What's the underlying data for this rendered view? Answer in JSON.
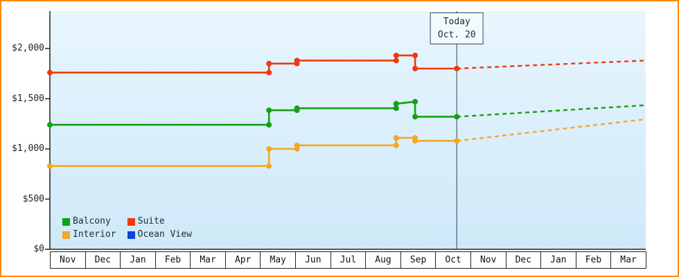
{
  "chart_data": {
    "type": "line",
    "x_axis": {
      "labels": [
        "Nov",
        "Dec",
        "Jan",
        "Feb",
        "Mar",
        "Apr",
        "May",
        "Jun",
        "Jul",
        "Aug",
        "Sep",
        "Oct",
        "Nov",
        "Dec",
        "Jan",
        "Feb",
        "Mar"
      ]
    },
    "y_axis": {
      "max": 2000,
      "ticks": [
        {
          "label": "$0",
          "value": 0
        },
        {
          "label": "$500",
          "value": 500
        },
        {
          "label": "$1,000",
          "value": 1000
        },
        {
          "label": "$1,500",
          "value": 1500
        },
        {
          "label": "$2,000",
          "value": 2000
        }
      ]
    },
    "today": {
      "line1": "Today",
      "line2": "Oct. 20",
      "month_index": 11.61
    },
    "series": [
      {
        "name": "Suite",
        "color": "#ee3911",
        "history": [
          [
            0,
            1760
          ],
          [
            6.25,
            1760
          ],
          [
            6.25,
            1850
          ],
          [
            7.05,
            1850
          ],
          [
            7.05,
            1880
          ],
          [
            9.88,
            1880
          ],
          [
            9.88,
            1930
          ],
          [
            10.42,
            1930
          ],
          [
            10.42,
            1800
          ],
          [
            11.61,
            1800
          ]
        ],
        "forecast": [
          [
            11.61,
            1800
          ],
          [
            17,
            1880
          ]
        ]
      },
      {
        "name": "Balcony",
        "color": "#13a113",
        "history": [
          [
            0,
            1240
          ],
          [
            6.25,
            1240
          ],
          [
            6.25,
            1385
          ],
          [
            7.05,
            1385
          ],
          [
            7.05,
            1405
          ],
          [
            9.88,
            1405
          ],
          [
            9.88,
            1450
          ],
          [
            10.42,
            1470
          ],
          [
            10.42,
            1320
          ],
          [
            11.61,
            1320
          ]
        ],
        "forecast": [
          [
            11.61,
            1320
          ],
          [
            17,
            1435
          ]
        ]
      },
      {
        "name": "Interior",
        "color": "#f5a623",
        "history": [
          [
            0,
            830
          ],
          [
            6.25,
            830
          ],
          [
            6.25,
            1000
          ],
          [
            7.05,
            1000
          ],
          [
            7.05,
            1035
          ],
          [
            9.88,
            1035
          ],
          [
            9.88,
            1110
          ],
          [
            10.42,
            1110
          ],
          [
            10.42,
            1080
          ],
          [
            11.61,
            1080
          ]
        ],
        "forecast": [
          [
            11.61,
            1080
          ],
          [
            17,
            1295
          ]
        ]
      },
      {
        "name": "Ocean View",
        "color": "#1144dd",
        "history": [],
        "forecast": []
      }
    ],
    "legend": {
      "position": "bottom-left",
      "items": [
        {
          "label": "Balcony",
          "color": "#13a113"
        },
        {
          "label": "Suite",
          "color": "#ee3911"
        },
        {
          "label": "Interior",
          "color": "#f5a623"
        },
        {
          "label": "Ocean View",
          "color": "#1144dd"
        }
      ]
    }
  },
  "colors": {
    "frame_border": "#ff8800",
    "plot_bg_top": "#e9f6fe",
    "plot_bg_bottom": "#cfe9f8",
    "today_line": "#33475b",
    "axis": "#222222"
  }
}
